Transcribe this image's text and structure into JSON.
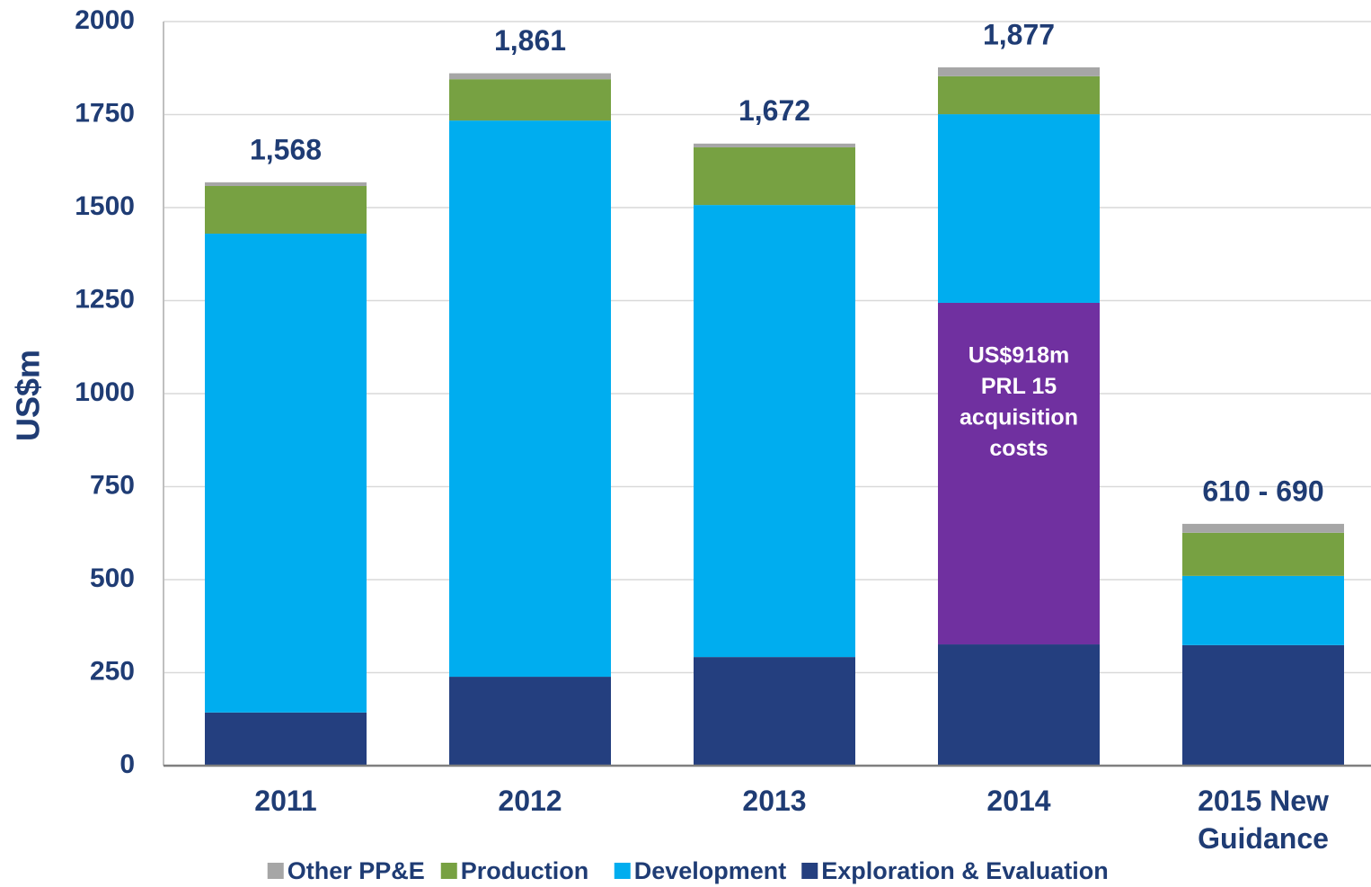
{
  "chart_data": {
    "type": "stacked-bar",
    "y_label": "US$m",
    "categories": [
      "2011",
      "2012",
      "2013",
      "2014",
      "2015 New Guidance"
    ],
    "series": [
      {
        "name": "Other PP&E",
        "color": "#a6a6a6",
        "values": [
          10,
          16,
          10,
          24,
          24
        ]
      },
      {
        "name": "Production",
        "color": "#77a142",
        "values": [
          128,
          111,
          155,
          102,
          116
        ]
      },
      {
        "name": "Development",
        "color": "#00adef",
        "values": [
          1287,
          1495,
          1215,
          507,
          186
        ]
      },
      {
        "color": "#7030a0",
        "label": [
          "US$918m",
          "PRL 15",
          "acquisition",
          "costs"
        ],
        "values": [
          null,
          null,
          null,
          918,
          null
        ]
      },
      {
        "name": "Exploration & Evaluation",
        "color": "#243f7f",
        "values": [
          143,
          239,
          292,
          326,
          324
        ]
      }
    ],
    "total_labels": [
      "1,568",
      "1,861",
      "1,672",
      "1,877",
      "610 - 690"
    ],
    "ylim": [
      0,
      2000
    ],
    "yticks": [
      0,
      250,
      500,
      750,
      1000,
      1250,
      1500,
      1750,
      2000
    ],
    "grid": true
  }
}
